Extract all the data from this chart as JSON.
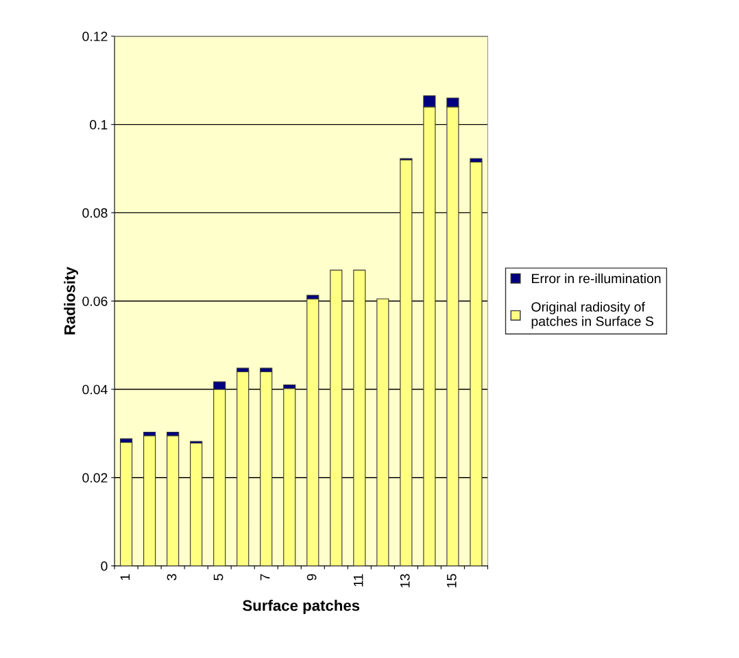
{
  "chart_data": {
    "type": "bar",
    "stacked": true,
    "xlabel": "Surface patches",
    "ylabel": "Radiosity",
    "categories": [
      "1",
      null,
      "3",
      null,
      "5",
      null,
      "7",
      null,
      "9",
      null,
      "11",
      null,
      "13",
      null,
      "15",
      null
    ],
    "series": [
      {
        "name": "Original radiosity of patches in Surface S",
        "color": "#ffff80",
        "values": [
          0.028,
          0.0295,
          0.0295,
          0.0278,
          0.04,
          0.044,
          0.044,
          0.0402,
          0.0605,
          0.067,
          0.067,
          0.0605,
          0.092,
          0.104,
          0.104,
          0.0915
        ]
      },
      {
        "name": "Error in re-illumination",
        "color": "#000080",
        "values": [
          0.0008,
          0.0008,
          0.0008,
          0.0004,
          0.0017,
          0.0008,
          0.0008,
          0.0008,
          0.0008,
          0,
          0,
          0,
          0.0003,
          0.0025,
          0.002,
          0.0008
        ]
      }
    ],
    "ylim": [
      0,
      0.12
    ],
    "yticks": [
      0,
      0.02,
      0.04,
      0.06,
      0.08,
      0.1,
      0.12
    ],
    "grid": "y",
    "legend": "right"
  }
}
